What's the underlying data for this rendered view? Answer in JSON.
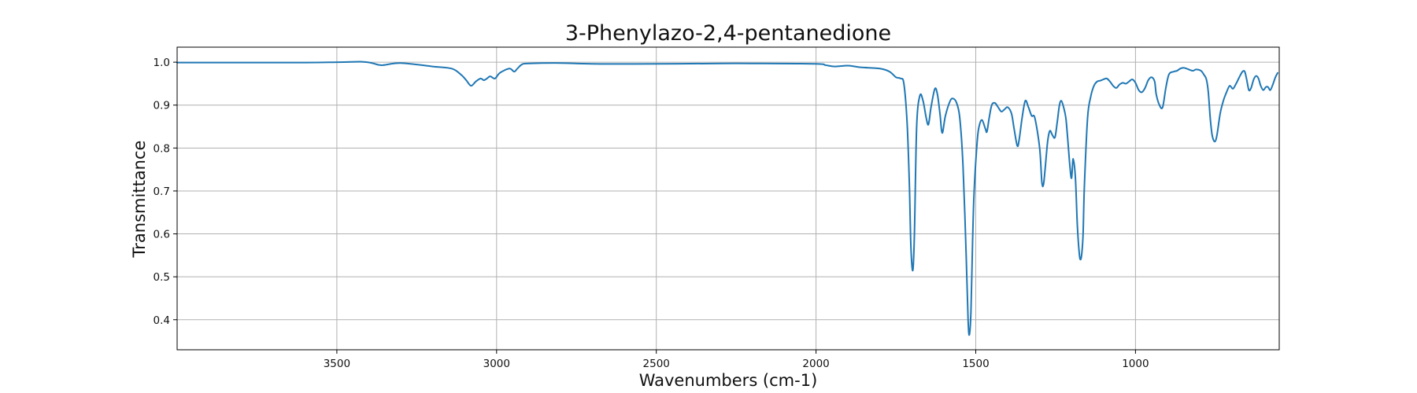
{
  "chart_data": {
    "type": "line",
    "title": "3-Phenylazo-2,4-pentanedione",
    "xlabel": "Wavenumbers (cm-1)",
    "ylabel": "Transmittance",
    "xlim": [
      4000,
      550
    ],
    "ylim": [
      0.33,
      1.035
    ],
    "x_reversed": true,
    "grid": true,
    "xticks": [
      3500,
      3000,
      2500,
      2000,
      1500,
      1000
    ],
    "yticks": [
      0.4,
      0.5,
      0.6,
      0.7,
      0.8,
      0.9,
      1.0
    ],
    "xtick_labels": [
      "3500",
      "3000",
      "2500",
      "2000",
      "1500",
      "1000"
    ],
    "ytick_labels": [
      "0.4",
      "0.5",
      "0.6",
      "0.7",
      "0.8",
      "0.9",
      "1.0"
    ],
    "series": [
      {
        "color": "#1f77b4",
        "x": [
          4000,
          3800,
          3600,
          3500,
          3420,
          3390,
          3360,
          3300,
          3200,
          3140,
          3110,
          3095,
          3080,
          3065,
          3050,
          3040,
          3030,
          3020,
          3005,
          2990,
          2960,
          2945,
          2935,
          2920,
          2900,
          2800,
          2700,
          2500,
          2300,
          2200,
          2000,
          1970,
          1940,
          1900,
          1860,
          1800,
          1770,
          1750,
          1735,
          1725,
          1715,
          1708,
          1703,
          1697,
          1692,
          1685,
          1675,
          1665,
          1655,
          1648,
          1640,
          1628,
          1620,
          1612,
          1605,
          1595,
          1580,
          1570,
          1560,
          1550,
          1540,
          1530,
          1524,
          1520,
          1515,
          1510,
          1505,
          1495,
          1488,
          1480,
          1470,
          1465,
          1458,
          1450,
          1440,
          1430,
          1420,
          1410,
          1400,
          1388,
          1380,
          1370,
          1364,
          1355,
          1345,
          1335,
          1325,
          1315,
          1300,
          1293,
          1288,
          1283,
          1275,
          1268,
          1260,
          1252,
          1245,
          1238,
          1232,
          1225,
          1218,
          1212,
          1205,
          1200,
          1195,
          1188,
          1182,
          1176,
          1172,
          1168,
          1164,
          1160,
          1150,
          1140,
          1130,
          1120,
          1110,
          1100,
          1090,
          1080,
          1070,
          1060,
          1050,
          1040,
          1030,
          1020,
          1010,
          1000,
          990,
          980,
          970,
          960,
          950,
          940,
          935,
          925,
          915,
          905,
          895,
          880,
          870,
          860,
          850,
          840,
          830,
          820,
          810,
          795,
          785,
          778,
          772,
          766,
          760,
          752,
          745,
          735,
          725,
          715,
          705,
          695,
          685,
          675,
          665,
          658,
          652,
          645,
          638,
          630,
          622,
          615,
          608,
          600,
          592,
          585,
          578,
          570,
          562,
          555
        ],
        "y": [
          0.999,
          0.999,
          0.999,
          1.0,
          1.001,
          0.998,
          0.993,
          0.998,
          0.99,
          0.985,
          0.97,
          0.958,
          0.945,
          0.955,
          0.962,
          0.958,
          0.962,
          0.967,
          0.962,
          0.975,
          0.985,
          0.978,
          0.985,
          0.995,
          0.997,
          0.998,
          0.996,
          0.996,
          0.997,
          0.997,
          0.996,
          0.993,
          0.99,
          0.992,
          0.988,
          0.985,
          0.978,
          0.965,
          0.962,
          0.95,
          0.86,
          0.72,
          0.57,
          0.515,
          0.6,
          0.85,
          0.922,
          0.91,
          0.87,
          0.855,
          0.895,
          0.938,
          0.925,
          0.88,
          0.835,
          0.875,
          0.91,
          0.915,
          0.905,
          0.87,
          0.76,
          0.55,
          0.4,
          0.365,
          0.42,
          0.58,
          0.7,
          0.82,
          0.855,
          0.865,
          0.845,
          0.838,
          0.87,
          0.9,
          0.905,
          0.895,
          0.885,
          0.89,
          0.895,
          0.88,
          0.845,
          0.805,
          0.82,
          0.87,
          0.91,
          0.895,
          0.875,
          0.87,
          0.8,
          0.72,
          0.715,
          0.75,
          0.815,
          0.84,
          0.83,
          0.825,
          0.86,
          0.9,
          0.91,
          0.895,
          0.87,
          0.82,
          0.755,
          0.73,
          0.775,
          0.73,
          0.62,
          0.555,
          0.54,
          0.555,
          0.6,
          0.71,
          0.87,
          0.92,
          0.945,
          0.955,
          0.957,
          0.96,
          0.962,
          0.955,
          0.945,
          0.94,
          0.948,
          0.952,
          0.95,
          0.955,
          0.96,
          0.952,
          0.935,
          0.93,
          0.94,
          0.958,
          0.965,
          0.955,
          0.925,
          0.9,
          0.895,
          0.94,
          0.972,
          0.978,
          0.98,
          0.985,
          0.987,
          0.985,
          0.982,
          0.98,
          0.983,
          0.98,
          0.97,
          0.96,
          0.93,
          0.87,
          0.83,
          0.815,
          0.83,
          0.88,
          0.91,
          0.93,
          0.945,
          0.938,
          0.95,
          0.965,
          0.978,
          0.978,
          0.96,
          0.935,
          0.94,
          0.96,
          0.968,
          0.962,
          0.945,
          0.935,
          0.942,
          0.942,
          0.935,
          0.948,
          0.965,
          0.975
        ]
      }
    ]
  }
}
